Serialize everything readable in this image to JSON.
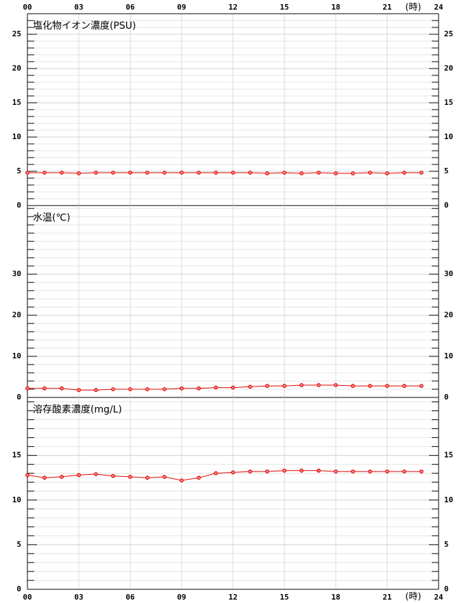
{
  "chart_data": [
    {
      "type": "line",
      "title": "塩化物イオン濃度(PSU)",
      "color": "#e00000",
      "x": [
        0,
        1,
        2,
        3,
        4,
        5,
        6,
        7,
        8,
        9,
        10,
        11,
        12,
        13,
        14,
        15,
        16,
        17,
        18,
        19,
        20,
        21,
        22,
        23
      ],
      "values": [
        4.8,
        4.8,
        4.8,
        4.7,
        4.8,
        4.8,
        4.8,
        4.8,
        4.8,
        4.8,
        4.8,
        4.8,
        4.8,
        4.8,
        4.7,
        4.8,
        4.7,
        4.8,
        4.7,
        4.7,
        4.8,
        4.7,
        4.8,
        4.8
      ],
      "xlim": [
        0,
        24
      ],
      "xticks": [
        {
          "value": 0,
          "label": "00"
        },
        {
          "value": 3,
          "label": "03"
        },
        {
          "value": 6,
          "label": "06"
        },
        {
          "value": 9,
          "label": "09"
        },
        {
          "value": 12,
          "label": "12"
        },
        {
          "value": 15,
          "label": "15"
        },
        {
          "value": 18,
          "label": "18"
        },
        {
          "value": 21,
          "label": "21"
        },
        24
      ],
      "xaxis_labels": "top",
      "x_unit": "(時)",
      "ylim": [
        0,
        28
      ],
      "yticks": [
        0,
        5,
        10,
        15,
        20,
        25
      ],
      "minor_yticks": [
        1,
        2,
        3,
        4,
        6,
        7,
        8,
        9,
        11,
        12,
        13,
        14,
        16,
        17,
        18,
        19,
        21,
        22,
        23,
        24,
        26,
        27
      ]
    },
    {
      "type": "line",
      "title": "水温(℃)",
      "color": "#e00000",
      "x": [
        0,
        1,
        2,
        3,
        4,
        5,
        6,
        7,
        8,
        9,
        10,
        11,
        12,
        13,
        14,
        15,
        16,
        17,
        18,
        19,
        20,
        21,
        22,
        23
      ],
      "values": [
        2.2,
        2.2,
        2.2,
        1.8,
        1.8,
        2.0,
        2.0,
        2.0,
        2.0,
        2.2,
        2.2,
        2.4,
        2.4,
        2.6,
        2.8,
        2.8,
        3.0,
        3.0,
        3.0,
        2.8,
        2.8,
        2.8,
        2.8,
        2.8
      ],
      "xlim": [
        0,
        24
      ],
      "xticks": [
        {
          "value": 0,
          "label": "00"
        },
        {
          "value": 3,
          "label": "03"
        },
        {
          "value": 6,
          "label": "06"
        },
        {
          "value": 9,
          "label": "09"
        },
        {
          "value": 12,
          "label": "12"
        },
        {
          "value": 15,
          "label": "15"
        },
        {
          "value": 18,
          "label": "18"
        },
        {
          "value": 21,
          "label": "21"
        },
        24
      ],
      "xaxis_labels": "none",
      "ylim": [
        0,
        46.7
      ],
      "yticks": [
        0,
        10,
        20,
        30
      ],
      "minor_yticks": [
        2,
        4,
        6,
        8,
        12,
        14,
        16,
        18,
        22,
        24,
        26,
        28,
        32,
        34,
        36,
        38,
        40,
        42,
        44,
        46
      ]
    },
    {
      "type": "line",
      "title": "溶存酸素濃度(mg/L)",
      "color": "#e00000",
      "x": [
        0,
        1,
        2,
        3,
        4,
        5,
        6,
        7,
        8,
        9,
        10,
        11,
        12,
        13,
        14,
        15,
        16,
        17,
        18,
        19,
        20,
        21,
        22,
        23
      ],
      "values": [
        12.8,
        12.5,
        12.6,
        12.8,
        12.9,
        12.7,
        12.6,
        12.5,
        12.6,
        12.2,
        12.5,
        13.0,
        13.1,
        13.2,
        13.2,
        13.3,
        13.3,
        13.3,
        13.2,
        13.2,
        13.2,
        13.2,
        13.2,
        13.2
      ],
      "xlim": [
        0,
        24
      ],
      "xticks": [
        {
          "value": 0,
          "label": "00"
        },
        {
          "value": 3,
          "label": "03"
        },
        {
          "value": 6,
          "label": "06"
        },
        {
          "value": 9,
          "label": "09"
        },
        {
          "value": 12,
          "label": "12"
        },
        {
          "value": 15,
          "label": "15"
        },
        {
          "value": 18,
          "label": "18"
        },
        {
          "value": 21,
          "label": "21"
        },
        24
      ],
      "xaxis_labels": "bottom",
      "x_unit": "(時)",
      "ylim": [
        0,
        21.5
      ],
      "yticks": [
        0,
        5,
        10,
        15
      ],
      "minor_yticks": [
        1,
        2,
        3,
        4,
        6,
        7,
        8,
        9,
        11,
        12,
        13,
        14,
        16,
        17,
        18,
        19,
        20,
        21
      ]
    }
  ]
}
